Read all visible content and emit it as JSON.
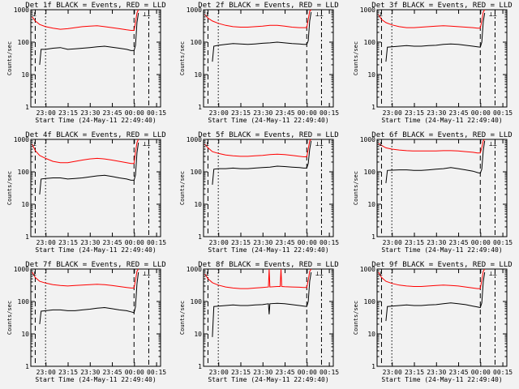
{
  "chart_data": [
    {
      "type": "line",
      "title": "Det 1f BLACK = Events, RED = LLD",
      "ylabel": "Counts/sec",
      "xlabel": "Start Time (24-May-11 22:49:40)",
      "xticks": [
        "23:00",
        "23:15",
        "23:30",
        "23:45",
        "00:00",
        "00:15"
      ],
      "yticks": [
        "1",
        "10",
        "100",
        "1000"
      ],
      "yscale": "log",
      "ylim": [
        1,
        1000
      ],
      "series": [
        {
          "color": "#ff0000",
          "x": [
            1,
            3,
            6,
            10,
            15,
            20,
            25,
            30,
            35,
            40,
            45,
            50,
            55,
            60,
            65,
            68,
            70,
            71,
            72,
            73
          ],
          "y": [
            600,
            450,
            350,
            300,
            270,
            250,
            260,
            280,
            300,
            310,
            320,
            300,
            280,
            260,
            240,
            230,
            230,
            400,
            800,
            1000
          ]
        },
        {
          "color": "#000000",
          "x": [
            6,
            7,
            10,
            15,
            20,
            25,
            30,
            35,
            40,
            45,
            50,
            55,
            60,
            65,
            68,
            70,
            71,
            72,
            73
          ],
          "y": [
            20,
            60,
            60,
            65,
            68,
            60,
            62,
            65,
            68,
            72,
            75,
            70,
            65,
            60,
            55,
            55,
            80,
            400,
            800
          ]
        }
      ]
    },
    {
      "type": "line",
      "title": "Det 2f BLACK = Events, RED = LLD",
      "ylabel": "Counts/sec",
      "xlabel": "Start Time (24-May-11 22:49:40)",
      "xticks": [
        "23:00",
        "23:15",
        "23:30",
        "23:45",
        "00:00",
        "00:15"
      ],
      "yticks": [
        "1",
        "10",
        "100",
        "1000"
      ],
      "yscale": "log",
      "ylim": [
        1,
        1000
      ],
      "series": [
        {
          "color": "#ff0000",
          "x": [
            1,
            3,
            6,
            10,
            15,
            20,
            25,
            30,
            35,
            40,
            45,
            50,
            55,
            60,
            65,
            68,
            70,
            71,
            72,
            73
          ],
          "y": [
            700,
            550,
            450,
            380,
            330,
            300,
            290,
            290,
            300,
            310,
            330,
            330,
            310,
            290,
            280,
            280,
            280,
            500,
            900,
            1000
          ]
        },
        {
          "color": "#000000",
          "x": [
            6,
            7,
            10,
            15,
            20,
            25,
            30,
            35,
            40,
            45,
            50,
            55,
            60,
            65,
            68,
            70,
            71,
            72,
            73
          ],
          "y": [
            25,
            75,
            80,
            85,
            90,
            88,
            85,
            88,
            92,
            95,
            100,
            95,
            90,
            88,
            85,
            85,
            110,
            450,
            850
          ]
        }
      ]
    },
    {
      "type": "line",
      "title": "Det 3f BLACK = Events, RED = LLD",
      "ylabel": "Counts/sec",
      "xlabel": "Start Time (24-May-11 22:49:40)",
      "xticks": [
        "23:00",
        "23:15",
        "23:30",
        "23:45",
        "00:00",
        "00:15"
      ],
      "yticks": [
        "1",
        "10",
        "100",
        "1000"
      ],
      "yscale": "log",
      "ylim": [
        1,
        1000
      ],
      "series": [
        {
          "color": "#ff0000",
          "x": [
            1,
            3,
            6,
            10,
            15,
            20,
            25,
            30,
            35,
            40,
            45,
            50,
            55,
            60,
            65,
            68,
            70,
            71,
            72,
            73
          ],
          "y": [
            700,
            500,
            400,
            340,
            300,
            280,
            280,
            290,
            300,
            310,
            320,
            310,
            300,
            290,
            280,
            270,
            270,
            450,
            850,
            1000
          ]
        },
        {
          "color": "#000000",
          "x": [
            6,
            7,
            10,
            15,
            20,
            25,
            30,
            35,
            40,
            45,
            50,
            55,
            60,
            65,
            68,
            70,
            71,
            72,
            73
          ],
          "y": [
            25,
            70,
            72,
            75,
            78,
            75,
            75,
            78,
            80,
            85,
            88,
            85,
            80,
            75,
            72,
            70,
            100,
            420,
            800
          ]
        }
      ]
    },
    {
      "type": "line",
      "title": "Det 4f BLACK = Events, RED = LLD",
      "ylabel": "Counts/sec",
      "xlabel": "Start Time (24-May-11 22:49:40)",
      "xticks": [
        "23:00",
        "23:15",
        "23:30",
        "23:45",
        "00:00",
        "00:15"
      ],
      "yticks": [
        "1",
        "10",
        "100",
        "1000"
      ],
      "yscale": "log",
      "ylim": [
        1,
        1000
      ],
      "series": [
        {
          "color": "#ff0000",
          "x": [
            1,
            3,
            6,
            10,
            15,
            20,
            25,
            30,
            35,
            40,
            45,
            50,
            55,
            60,
            65,
            68,
            70,
            71,
            72,
            73
          ],
          "y": [
            700,
            450,
            320,
            260,
            210,
            190,
            190,
            210,
            230,
            250,
            260,
            250,
            230,
            210,
            190,
            180,
            180,
            400,
            800,
            1000
          ]
        },
        {
          "color": "#000000",
          "x": [
            6,
            7,
            10,
            15,
            20,
            25,
            30,
            35,
            40,
            45,
            50,
            55,
            60,
            65,
            68,
            70,
            71,
            72,
            73
          ],
          "y": [
            20,
            60,
            62,
            65,
            65,
            60,
            62,
            65,
            70,
            75,
            78,
            72,
            65,
            60,
            55,
            55,
            80,
            380,
            800
          ]
        }
      ]
    },
    {
      "type": "line",
      "title": "Det 5f BLACK = Events, RED = LLD",
      "ylabel": "Counts/sec",
      "xlabel": "Start Time (24-May-11 22:49:40)",
      "xticks": [
        "23:00",
        "23:15",
        "23:30",
        "23:45",
        "00:00",
        "00:15"
      ],
      "yticks": [
        "1",
        "10",
        "100",
        "1000"
      ],
      "yscale": "log",
      "ylim": [
        1,
        1000
      ],
      "series": [
        {
          "color": "#ff0000",
          "x": [
            1,
            3,
            6,
            10,
            15,
            20,
            25,
            30,
            35,
            40,
            45,
            50,
            55,
            60,
            65,
            68,
            70,
            71,
            72,
            73
          ],
          "y": [
            700,
            550,
            420,
            370,
            330,
            310,
            300,
            300,
            310,
            320,
            340,
            350,
            340,
            320,
            300,
            290,
            290,
            500,
            900,
            1000
          ]
        },
        {
          "color": "#000000",
          "x": [
            6,
            7,
            10,
            15,
            20,
            25,
            30,
            35,
            40,
            45,
            50,
            55,
            60,
            65,
            68,
            70,
            71,
            72,
            73
          ],
          "y": [
            40,
            120,
            125,
            125,
            130,
            125,
            125,
            130,
            135,
            140,
            150,
            145,
            140,
            135,
            130,
            130,
            180,
            500,
            900
          ]
        }
      ]
    },
    {
      "type": "line",
      "title": "Det 6f BLACK = Events, RED = LLD",
      "ylabel": "Counts/sec",
      "xlabel": "Start Time (24-May-11 22:49:40)",
      "xticks": [
        "23:00",
        "23:15",
        "23:30",
        "23:45",
        "00:00",
        "00:15"
      ],
      "yticks": [
        "1",
        "10",
        "100",
        "1000"
      ],
      "yscale": "log",
      "ylim": [
        1,
        1000
      ],
      "series": [
        {
          "color": "#ff0000",
          "x": [
            1,
            3,
            6,
            10,
            15,
            20,
            25,
            30,
            35,
            40,
            45,
            50,
            55,
            60,
            65,
            68,
            70,
            71,
            72,
            73
          ],
          "y": [
            750,
            650,
            550,
            500,
            470,
            450,
            440,
            440,
            440,
            440,
            450,
            450,
            440,
            420,
            400,
            380,
            380,
            550,
            900,
            1000
          ]
        },
        {
          "color": "#000000",
          "x": [
            6,
            7,
            10,
            15,
            20,
            25,
            30,
            35,
            40,
            45,
            50,
            55,
            60,
            65,
            68,
            70,
            71,
            72,
            73
          ],
          "y": [
            45,
            110,
            112,
            115,
            115,
            110,
            110,
            115,
            120,
            125,
            135,
            125,
            115,
            105,
            95,
            90,
            120,
            450,
            900
          ]
        }
      ]
    },
    {
      "type": "line",
      "title": "Det 7f BLACK = Events, RED = LLD",
      "ylabel": "Counts/sec",
      "xlabel": "Start Time (24-May-11 22:49:40)",
      "xticks": [
        "23:00",
        "23:15",
        "23:30",
        "23:45",
        "00:00",
        "00:15"
      ],
      "yticks": [
        "1",
        "10",
        "100",
        "1000"
      ],
      "yscale": "log",
      "ylim": [
        1,
        1000
      ],
      "series": [
        {
          "color": "#ff0000",
          "x": [
            1,
            3,
            6,
            10,
            15,
            20,
            25,
            30,
            35,
            40,
            45,
            50,
            55,
            60,
            65,
            68,
            70,
            71,
            72,
            73
          ],
          "y": [
            800,
            550,
            420,
            370,
            330,
            310,
            300,
            310,
            320,
            330,
            340,
            330,
            310,
            290,
            270,
            260,
            260,
            450,
            850,
            1000
          ]
        },
        {
          "color": "#000000",
          "x": [
            6,
            7,
            10,
            15,
            20,
            25,
            30,
            35,
            40,
            45,
            50,
            55,
            60,
            65,
            68,
            70,
            71,
            72,
            73
          ],
          "y": [
            20,
            50,
            52,
            55,
            55,
            52,
            52,
            55,
            58,
            62,
            65,
            60,
            55,
            52,
            48,
            45,
            70,
            350,
            800
          ]
        }
      ]
    },
    {
      "type": "line",
      "title": "Det 8f BLACK = Events, RED = LLD",
      "ylabel": "Counts/sec",
      "xlabel": "Start Time (24-May-11 22:49:40)",
      "xticks": [
        "23:00",
        "23:15",
        "23:30",
        "23:45",
        "00:00",
        "00:15"
      ],
      "yticks": [
        "1",
        "10",
        "100",
        "1000"
      ],
      "yscale": "log",
      "ylim": [
        1,
        1000
      ],
      "series": [
        {
          "color": "#ff0000",
          "x": [
            1,
            3,
            6,
            10,
            15,
            20,
            25,
            30,
            35,
            40,
            44,
            44.5,
            45,
            50,
            52,
            52.5,
            53,
            55,
            60,
            65,
            68,
            70,
            71,
            72,
            73
          ],
          "y": [
            700,
            500,
            380,
            320,
            280,
            260,
            250,
            250,
            260,
            270,
            280,
            1000,
            280,
            290,
            290,
            1000,
            290,
            285,
            280,
            275,
            270,
            270,
            450,
            850,
            1000
          ]
        },
        {
          "color": "#000000",
          "x": [
            6,
            7,
            10,
            15,
            20,
            25,
            30,
            35,
            40,
            44,
            44.5,
            45,
            50,
            55,
            60,
            65,
            68,
            70,
            71,
            72,
            73
          ],
          "y": [
            8,
            70,
            72,
            75,
            78,
            75,
            75,
            78,
            80,
            85,
            40,
            85,
            88,
            85,
            80,
            75,
            72,
            70,
            100,
            420,
            800
          ]
        }
      ]
    },
    {
      "type": "line",
      "title": "Det 9f BLACK = Events, RED = LLD",
      "ylabel": "Counts/sec",
      "xlabel": "Start Time (24-May-11 22:49:40)",
      "xticks": [
        "23:00",
        "23:15",
        "23:30",
        "23:45",
        "00:00",
        "00:15"
      ],
      "yticks": [
        "1",
        "10",
        "100",
        "1000"
      ],
      "yscale": "log",
      "ylim": [
        1,
        1000
      ],
      "series": [
        {
          "color": "#ff0000",
          "x": [
            1,
            3,
            6,
            10,
            15,
            20,
            25,
            30,
            35,
            40,
            45,
            50,
            55,
            60,
            65,
            68,
            70,
            71,
            72,
            73
          ],
          "y": [
            800,
            550,
            420,
            360,
            320,
            300,
            290,
            290,
            300,
            310,
            320,
            310,
            300,
            280,
            260,
            250,
            250,
            450,
            850,
            1000
          ]
        },
        {
          "color": "#000000",
          "x": [
            6,
            7,
            10,
            15,
            20,
            25,
            30,
            35,
            40,
            45,
            50,
            55,
            60,
            65,
            68,
            70,
            71,
            72,
            73
          ],
          "y": [
            25,
            70,
            72,
            75,
            78,
            75,
            75,
            78,
            80,
            85,
            90,
            85,
            80,
            72,
            68,
            65,
            90,
            400,
            800
          ]
        }
      ]
    }
  ]
}
